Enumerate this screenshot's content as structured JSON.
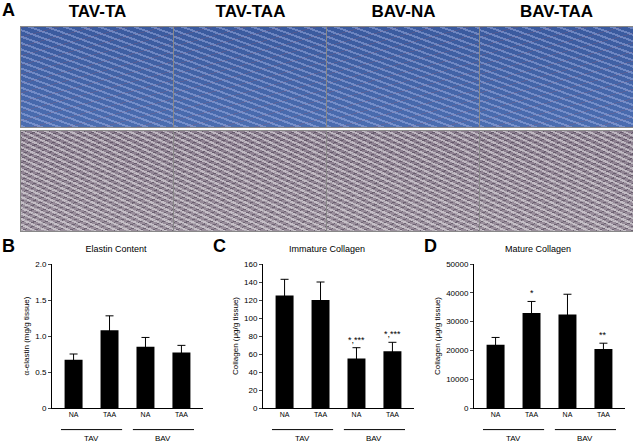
{
  "panel_a": {
    "panel_label": "A",
    "columns": [
      "TAV-TA",
      "TAV-TAA",
      "BAV-NA",
      "BAV-TAA"
    ]
  },
  "chart_data": [
    {
      "type": "bar",
      "panel_label": "B",
      "title": "Elastin Content",
      "y_label": "α-elastin (mg/g tissue)",
      "categories": [
        "NA",
        "TAA",
        "NA",
        "TAA"
      ],
      "groups": [
        "TAV",
        "TAV",
        "BAV",
        "BAV"
      ],
      "values": [
        0.67,
        1.08,
        0.85,
        0.77
      ],
      "errors": [
        0.08,
        0.2,
        0.13,
        0.1
      ],
      "color": "#000000",
      "ylim": [
        0,
        2
      ],
      "yticks": [
        0,
        0.5,
        {
          "value": 1,
          "label": "1.0"
        },
        1.5,
        {
          "value": 2,
          "label": "2.0"
        }
      ],
      "grid": false,
      "data_labels": false,
      "annotations": []
    },
    {
      "type": "bar",
      "panel_label": "C",
      "title": "Immature Collagen",
      "y_label": "Collagen (μg/g tissue)",
      "categories": [
        "NA",
        "TAA",
        "NA",
        "TAA"
      ],
      "groups": [
        "TAV",
        "TAV",
        "BAV",
        "BAV"
      ],
      "values": [
        125,
        120,
        55,
        63
      ],
      "errors": [
        18,
        20,
        12,
        10
      ],
      "color": "#000000",
      "ylim": [
        0,
        160
      ],
      "yticks": [
        0,
        20,
        40,
        60,
        80,
        100,
        120,
        140,
        160
      ],
      "grid": false,
      "data_labels": false,
      "annotations": [
        {
          "category_index": 2,
          "text": "*,***"
        },
        {
          "category_index": 3,
          "text": "*,***"
        }
      ]
    },
    {
      "type": "bar",
      "panel_label": "D",
      "title": "Mature Collagen",
      "y_label": "Collagen (μg/g tissue)",
      "categories": [
        "NA",
        "TAA",
        "NA",
        "TAA"
      ],
      "groups": [
        "TAV",
        "TAV",
        "BAV",
        "BAV"
      ],
      "values": [
        22000,
        33000,
        32500,
        20500
      ],
      "errors": [
        2500,
        4000,
        7000,
        2000
      ],
      "color": "#000000",
      "ylim": [
        0,
        50000
      ],
      "yticks": [
        0,
        10000,
        20000,
        30000,
        40000,
        50000
      ],
      "grid": false,
      "data_labels": false,
      "annotations": [
        {
          "category_index": 1,
          "text": "*"
        },
        {
          "category_index": 3,
          "text": "**"
        }
      ]
    }
  ]
}
